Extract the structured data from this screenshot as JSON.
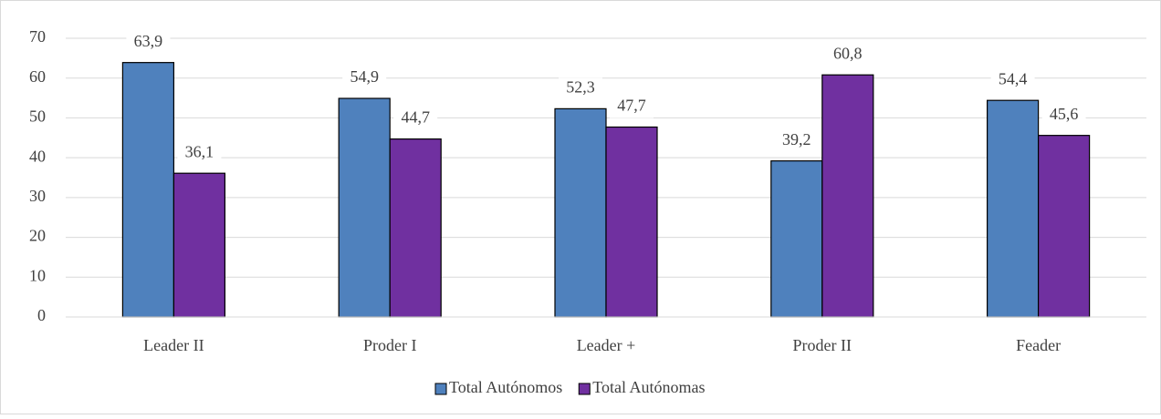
{
  "chart_data": {
    "type": "bar",
    "categories": [
      "Leader II",
      "Proder I",
      "Leader +",
      "Proder II",
      "Feader"
    ],
    "series": [
      {
        "name": "Total Autónomos",
        "color": "#4f81bd",
        "values": [
          63.9,
          54.9,
          52.3,
          39.2,
          54.4
        ],
        "value_labels": [
          "63,9",
          "54,9",
          "52,3",
          "39,2",
          "54,4"
        ]
      },
      {
        "name": "Total Autónomas",
        "color": "#7030a0",
        "values": [
          36.1,
          44.7,
          47.7,
          60.8,
          45.6
        ],
        "value_labels": [
          "36,1",
          "44,7",
          "47,7",
          "60,8",
          "45,6"
        ]
      }
    ],
    "ylim": [
      0,
      70
    ],
    "yticks": [
      0,
      10,
      20,
      30,
      40,
      50,
      60,
      70
    ],
    "grid": true,
    "legend": "bottom"
  }
}
